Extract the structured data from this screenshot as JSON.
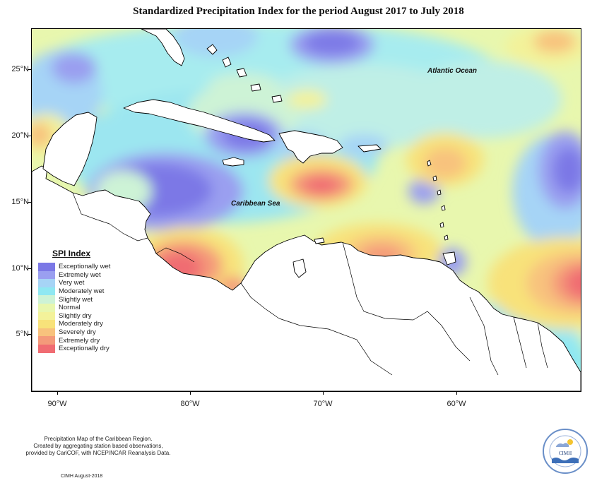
{
  "map": {
    "title": "Standardized Precipitation Index for the period August 2017 to July 2018",
    "region_labels": {
      "atlantic": "Atlantic Ocean",
      "caribbean": "Caribbean Sea"
    },
    "lat_ticks": [
      "25°N",
      "20°N",
      "15°N",
      "10°N",
      "5°N"
    ],
    "lon_ticks": [
      "90°W",
      "80°W",
      "70°W",
      "60°W"
    ]
  },
  "legend": {
    "title": "SPI Index",
    "entries": [
      {
        "label": "Exceptionally wet",
        "color": "#7b78e6"
      },
      {
        "label": "Extremely wet",
        "color": "#9a9ff0"
      },
      {
        "label": "Very wet",
        "color": "#a6d4f6"
      },
      {
        "label": "Moderately wet",
        "color": "#8fe8f2"
      },
      {
        "label": "Slightly wet",
        "color": "#cdf3d6"
      },
      {
        "label": "Normal",
        "color": "#e8f7ae"
      },
      {
        "label": "Slightly dry",
        "color": "#f3f29a"
      },
      {
        "label": "Moderately dry",
        "color": "#f8e27a"
      },
      {
        "label": "Severely dry",
        "color": "#f8c27d"
      },
      {
        "label": "Extremely dry",
        "color": "#f49a7a"
      },
      {
        "label": "Exceptionally dry",
        "color": "#f06c72"
      }
    ]
  },
  "footer": {
    "line1": "Precipitation Map of the Caribbean Region.",
    "line2": "Created by aggregating station based observations,",
    "line3": "provided by CariCOF, with NCEP/NCAR Reanalysis Data.",
    "credit": "CIMH August-2018"
  },
  "logo": {
    "text": "CIMH",
    "icon": "cimh-logo-icon"
  }
}
